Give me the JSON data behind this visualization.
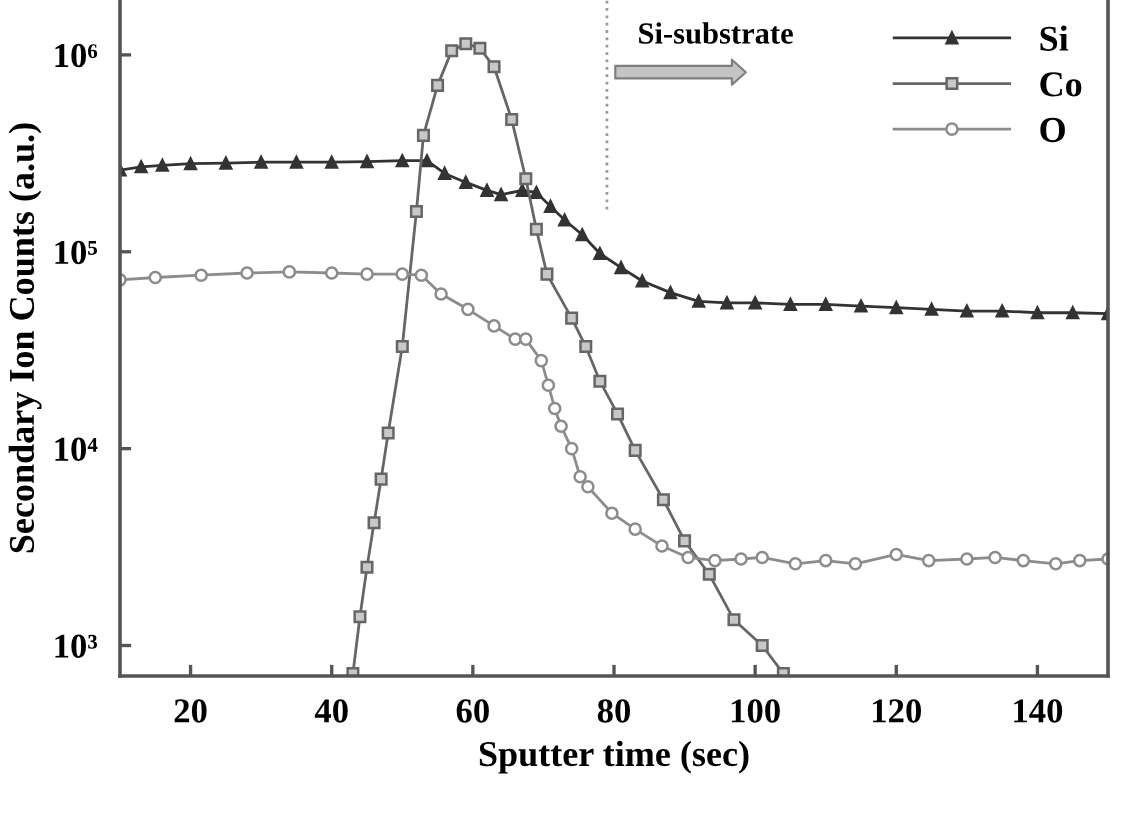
{
  "chart_data": {
    "type": "line",
    "xlabel": "Sputter time (sec)",
    "ylabel": "Secondary Ion Counts (a.u.)",
    "log": "y",
    "xlim": [
      10,
      150
    ],
    "xticks": [
      20,
      40,
      60,
      80,
      100,
      120,
      140
    ],
    "ylim": [
      700,
      1900000
    ],
    "yticks": [
      {
        "value": 1000,
        "label": "10³"
      },
      {
        "value": 10000,
        "label": "10⁴"
      },
      {
        "value": 100000,
        "label": "10⁵"
      },
      {
        "value": 1000000,
        "label": "10⁶"
      }
    ],
    "legend": "top right",
    "ref_lines": [
      {
        "axis": "x",
        "value": 79,
        "label": "Si-substrate",
        "color": "#999999",
        "line_style": "dotted"
      }
    ],
    "series": [
      {
        "name": "Si",
        "color": "#333333",
        "marker": "triangle",
        "x": [
          10,
          13,
          16,
          20,
          25,
          30,
          35,
          40,
          45,
          50,
          53.5,
          56,
          59,
          62,
          64,
          67,
          69,
          71,
          73,
          75.5,
          78,
          81,
          84,
          88,
          92,
          96,
          100,
          105,
          110,
          115,
          120,
          125,
          130,
          135,
          140,
          145,
          150
        ],
        "values": [
          260000,
          270000,
          275000,
          280000,
          282000,
          285000,
          285000,
          285000,
          287000,
          290000,
          290000,
          250000,
          225000,
          205000,
          195000,
          205000,
          200000,
          170000,
          145000,
          122000,
          98000,
          83000,
          71000,
          62000,
          56000,
          55000,
          55000,
          54000,
          54000,
          53000,
          52000,
          51000,
          50000,
          50000,
          49000,
          49000,
          48500
        ]
      },
      {
        "name": "Co",
        "color": "#666666",
        "marker": "square",
        "x": [
          43,
          44,
          45,
          46,
          47,
          48,
          50,
          52,
          53,
          55,
          57,
          59,
          61,
          63,
          65.5,
          67.5,
          69,
          70.5,
          74,
          76,
          78,
          80.5,
          83,
          87,
          90,
          93.5,
          97,
          101,
          104
        ],
        "values": [
          720,
          1400,
          2500,
          4200,
          7000,
          12000,
          33000,
          160000,
          390000,
          700000,
          1050000,
          1140000,
          1080000,
          870000,
          470000,
          235000,
          130000,
          77000,
          46000,
          33000,
          22000,
          15000,
          9800,
          5500,
          3400,
          2300,
          1350,
          1000,
          720
        ]
      },
      {
        "name": "O",
        "color": "#8c8c8c",
        "marker": "circle",
        "x": [
          10,
          15,
          21.5,
          28,
          34,
          40,
          45,
          50,
          52.7,
          55.5,
          59.3,
          63,
          66,
          67.5,
          69.7,
          70.7,
          71.6,
          72.5,
          74,
          75.2,
          76.3,
          79.7,
          83,
          86.8,
          90.5,
          94.3,
          98,
          101,
          105.7,
          110,
          114.2,
          120,
          124.6,
          130,
          134,
          138,
          142.6,
          146,
          150
        ],
        "values": [
          72000,
          74000,
          76000,
          78000,
          79000,
          78000,
          77000,
          77000,
          76000,
          61000,
          51000,
          42000,
          36000,
          36000,
          28000,
          21000,
          16000,
          13000,
          10000,
          7200,
          6400,
          4700,
          3900,
          3200,
          2800,
          2700,
          2750,
          2800,
          2600,
          2700,
          2600,
          2900,
          2700,
          2750,
          2800,
          2700,
          2600,
          2700,
          2750
        ]
      }
    ]
  }
}
